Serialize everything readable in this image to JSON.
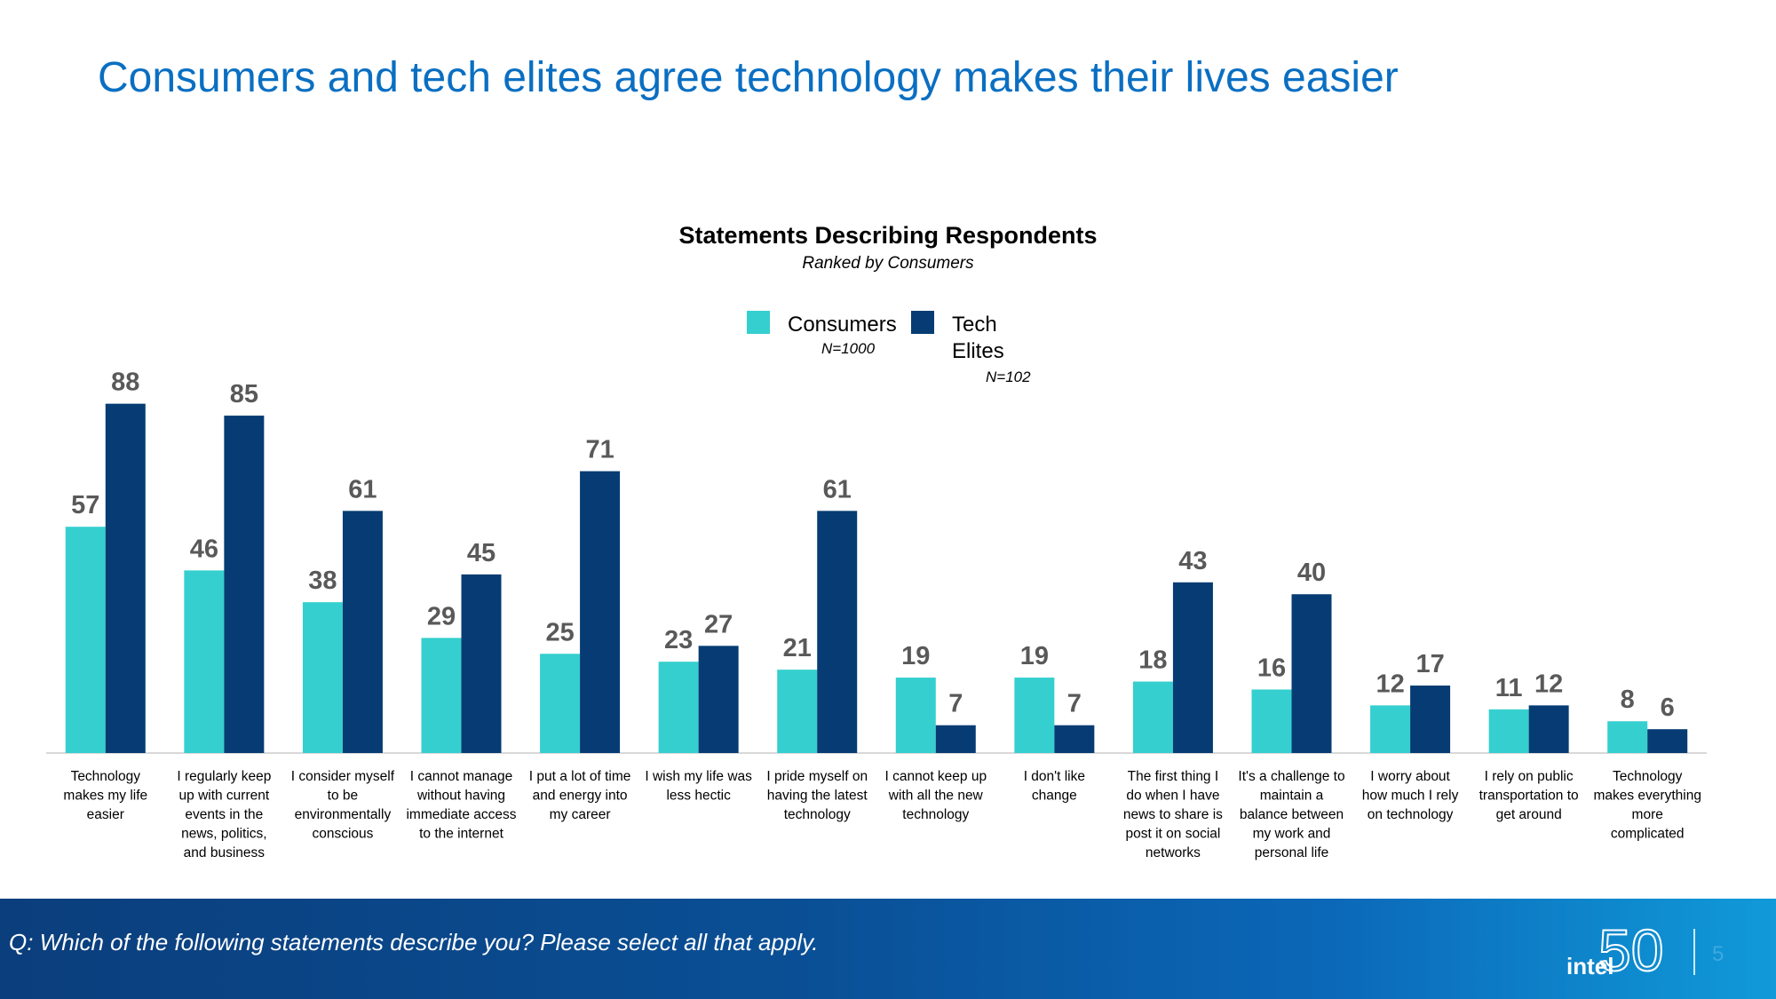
{
  "slide": {
    "title": "Consumers and tech elites agree technology makes their lives easier",
    "question": "Q: Which of the following statements describe you? Please select all that apply.",
    "page_number": "5",
    "logo_text": "intel",
    "logo_number": "50"
  },
  "colors": {
    "consumers": "#35cfcf",
    "tech_elites": "#063c73",
    "title": "#0a6fc2",
    "value_label": "#595959",
    "axis": "#d9d9d9"
  },
  "chart_data": {
    "type": "bar",
    "title": "Statements Describing Respondents",
    "subtitle": "Ranked by Consumers",
    "xlabel": "",
    "ylabel": "",
    "ylim": [
      0,
      100
    ],
    "grid": false,
    "legend_position": "top-center",
    "categories": [
      "Technology makes my life easier",
      "I regularly keep up with current events in the news, politics, and business",
      "I consider myself to be environmentally conscious",
      "I cannot manage without having immediate access to the internet",
      "I put a lot of time and energy into my career",
      "I wish my life was less hectic",
      "I pride myself on having the latest technology",
      "I cannot keep up with all the new technology",
      "I don't like change",
      "The first thing I do when I have news to share is post it on social networks",
      "It's a challenge to maintain a balance between my work and personal life",
      "I worry about how much I rely on technology",
      "I rely on public transportation to get around",
      "Technology makes everything more complicated"
    ],
    "category_lines": [
      [
        "Technology",
        "makes my life",
        "easier"
      ],
      [
        "I regularly keep",
        "up with current",
        "events in the",
        "news, politics,",
        "and business"
      ],
      [
        "I consider myself",
        "to be",
        "environmentally",
        "conscious"
      ],
      [
        "I cannot manage",
        "without having",
        "immediate access",
        "to the internet"
      ],
      [
        "I put a lot of time",
        "and energy into",
        "my career"
      ],
      [
        "I wish my life was",
        "less hectic"
      ],
      [
        "I pride myself on",
        "having the latest",
        "technology"
      ],
      [
        "I cannot keep up",
        "with all the new",
        "technology"
      ],
      [
        "I don't like",
        "change"
      ],
      [
        "The first thing I",
        "do when I have",
        "news to share is",
        "post it on social",
        "networks"
      ],
      [
        "It's a challenge to",
        "maintain a",
        "balance between",
        "my work and",
        "personal life"
      ],
      [
        "I worry about",
        "how much I rely",
        "on technology"
      ],
      [
        "I rely on public",
        "transportation to",
        "get around"
      ],
      [
        "Technology",
        "makes everything",
        "more",
        "complicated"
      ]
    ],
    "series": [
      {
        "name": "Consumers",
        "name_lines": [
          "Consumers"
        ],
        "n_label": "N=1000",
        "values": [
          57,
          46,
          38,
          29,
          25,
          23,
          21,
          19,
          19,
          18,
          16,
          12,
          11,
          8
        ]
      },
      {
        "name": "Tech Elites",
        "name_lines": [
          "Tech",
          "Elites"
        ],
        "n_label": "N=102",
        "values": [
          88,
          85,
          61,
          45,
          71,
          27,
          61,
          7,
          7,
          43,
          40,
          17,
          12,
          6
        ]
      }
    ]
  }
}
